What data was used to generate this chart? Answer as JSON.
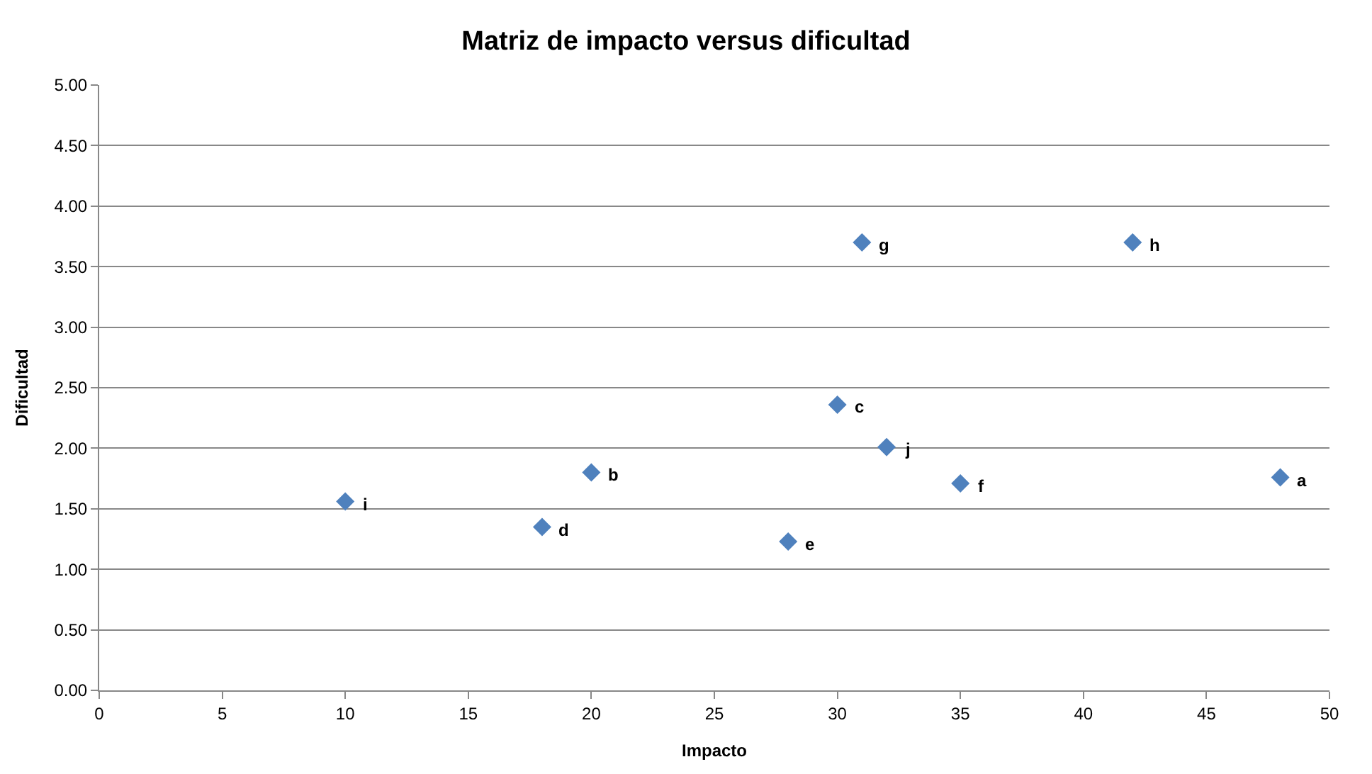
{
  "chart_data": {
    "type": "scatter",
    "title": "Matriz de impacto versus dificultad",
    "xlabel": "Impacto",
    "ylabel": "Dificultad",
    "x": [
      10,
      18,
      20,
      28,
      30,
      31,
      32,
      35,
      42,
      48
    ],
    "series": [
      {
        "color": "#4f81bd",
        "values": [
          1.56,
          1.35,
          1.8,
          1.23,
          2.36,
          3.7,
          2.01,
          1.71,
          3.7,
          1.76
        ]
      }
    ],
    "annotations": [
      {
        "text": "i",
        "x": 10,
        "y": 1.56
      },
      {
        "text": "d",
        "x": 18,
        "y": 1.35
      },
      {
        "text": "b",
        "x": 20,
        "y": 1.8
      },
      {
        "text": "e",
        "x": 28,
        "y": 1.23
      },
      {
        "text": "c",
        "x": 30,
        "y": 2.36
      },
      {
        "text": "g",
        "x": 31,
        "y": 3.7
      },
      {
        "text": "j",
        "x": 32,
        "y": 2.01
      },
      {
        "text": "f",
        "x": 35,
        "y": 1.71
      },
      {
        "text": "h",
        "x": 42,
        "y": 3.7
      },
      {
        "text": "a",
        "x": 48,
        "y": 1.76
      }
    ],
    "xlim": [
      0,
      50
    ],
    "xticks": [
      0,
      5,
      10,
      15,
      20,
      25,
      30,
      35,
      40,
      45,
      50
    ],
    "ylim": [
      0,
      5
    ],
    "yticks": [
      {
        "value": 0,
        "label": "0.00"
      },
      {
        "value": 0.5,
        "label": "0.50"
      },
      {
        "value": 1,
        "label": "1.00"
      },
      {
        "value": 1.5,
        "label": "1.50"
      },
      {
        "value": 2,
        "label": "2.00"
      },
      {
        "value": 2.5,
        "label": "2.50"
      },
      {
        "value": 3,
        "label": "3.00"
      },
      {
        "value": 3.5,
        "label": "3.50"
      },
      {
        "value": 4,
        "label": "4.00"
      },
      {
        "value": 4.5,
        "label": "4.50"
      },
      {
        "value": 5,
        "label": "5.00"
      }
    ],
    "grid": "y",
    "marker": "diamond"
  }
}
